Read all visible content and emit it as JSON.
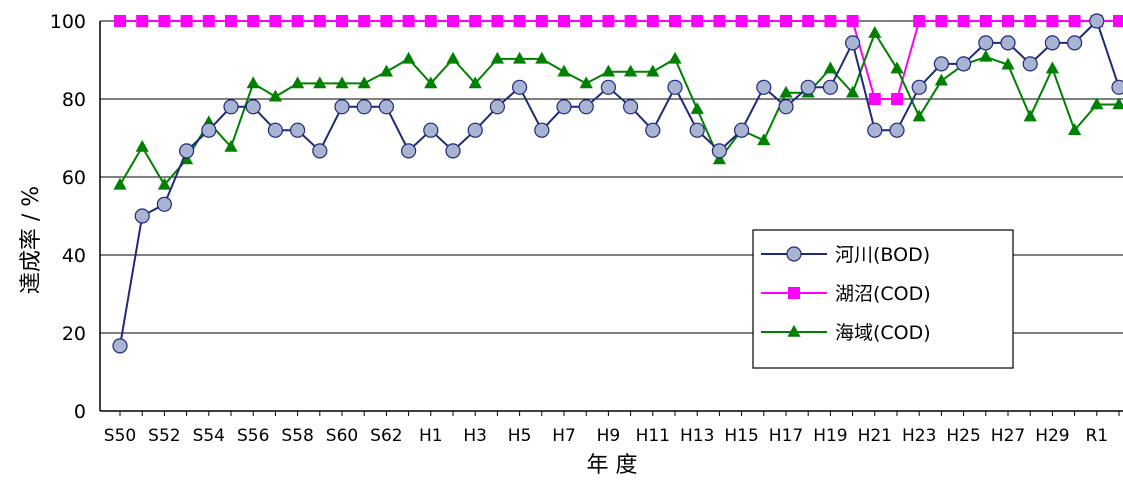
{
  "chart_data": {
    "type": "line",
    "xlabel": "年 度",
    "ylabel": "達成率 / %",
    "ylim": [
      0,
      100
    ],
    "yticks": [
      0,
      20,
      40,
      60,
      80,
      100
    ],
    "grid": true,
    "legend_position": "right",
    "categories": [
      "S50",
      "S51",
      "S52",
      "S53",
      "S54",
      "S55",
      "S56",
      "S57",
      "S58",
      "S59",
      "S60",
      "S61",
      "S62",
      "S63",
      "H1",
      "H2",
      "H3",
      "H4",
      "H5",
      "H6",
      "H7",
      "H8",
      "H9",
      "H10",
      "H11",
      "H12",
      "H13",
      "H14",
      "H15",
      "H16",
      "H17",
      "H18",
      "H19",
      "H20",
      "H21",
      "H22",
      "H23",
      "H24",
      "H25",
      "H26",
      "H27",
      "H28",
      "H29",
      "H30",
      "R1",
      "R2"
    ],
    "tick_labels": [
      "S50",
      "",
      "S52",
      "",
      "S54",
      "",
      "S56",
      "",
      "S58",
      "",
      "S60",
      "",
      "S62",
      "",
      "H1",
      "",
      "H3",
      "",
      "H5",
      "",
      "H7",
      "",
      "H9",
      "",
      "H11",
      "",
      "H13",
      "",
      "H15",
      "",
      "H17",
      "",
      "H19",
      "",
      "H21",
      "",
      "H23",
      "",
      "H25",
      "",
      "H27",
      "",
      "H29",
      "",
      "R1",
      ""
    ],
    "series": [
      {
        "name": "河川(BOD)",
        "color": "#1f2a7a",
        "marker": "circle",
        "marker_fill": "#a8b4d2",
        "values": [
          16.7,
          50,
          53,
          66.7,
          72,
          78,
          78,
          72,
          72,
          66.7,
          78,
          78,
          78,
          66.7,
          72,
          66.7,
          72,
          78,
          83,
          72,
          78,
          78,
          83,
          78,
          72,
          83,
          72,
          66.7,
          72,
          83,
          78,
          83,
          83,
          94.4,
          72,
          72,
          83,
          89,
          89,
          94.4,
          94.4,
          89,
          94.4,
          94.4,
          100,
          83
        ]
      },
      {
        "name": "湖沼(COD)",
        "color": "#ff00ff",
        "marker": "square",
        "marker_fill": "#ff00ff",
        "values": [
          100,
          100,
          100,
          100,
          100,
          100,
          100,
          100,
          100,
          100,
          100,
          100,
          100,
          100,
          100,
          100,
          100,
          100,
          100,
          100,
          100,
          100,
          100,
          100,
          100,
          100,
          100,
          100,
          100,
          100,
          100,
          100,
          100,
          100,
          80,
          80,
          100,
          100,
          100,
          100,
          100,
          100,
          100,
          100,
          100,
          100
        ]
      },
      {
        "name": "海域(COD)",
        "color": "#008000",
        "marker": "triangle",
        "marker_fill": "#008000",
        "values": [
          58,
          67.7,
          58,
          64.5,
          74,
          67.7,
          84,
          80.6,
          84,
          84,
          84,
          84,
          87,
          90.3,
          84,
          90.3,
          84,
          90.3,
          90.3,
          90.3,
          87,
          84,
          87,
          87,
          87,
          90.3,
          77.4,
          64.5,
          72,
          69.4,
          81.6,
          81.6,
          87.8,
          81.6,
          96.9,
          87.8,
          75.5,
          84.7,
          88.8,
          90.8,
          88.8,
          75.5,
          87.8,
          72,
          78.6,
          78.6
        ]
      }
    ]
  }
}
